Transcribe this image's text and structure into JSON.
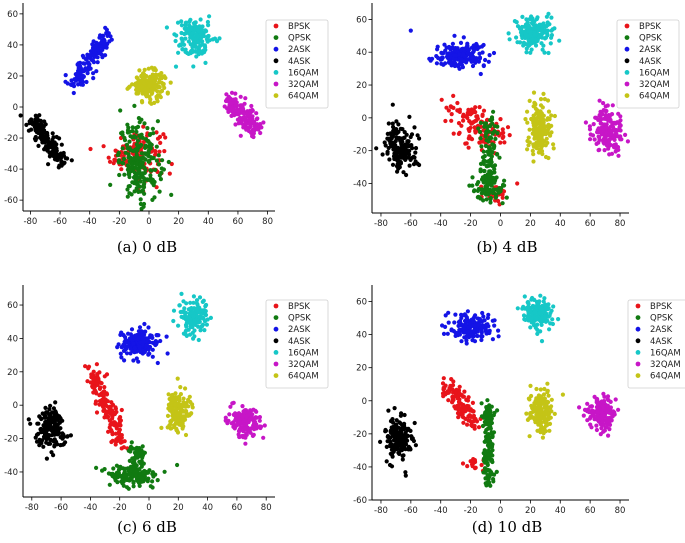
{
  "figure": {
    "legend_colors": {
      "BPSK": "#e8141a",
      "QPSK": "#117a11",
      "2ASK": "#1414e6",
      "4ASK": "#000000",
      "16QAM": "#16c7c7",
      "32QAM": "#c716c7",
      "64QAM": "#c4c417"
    }
  },
  "chart_data": [
    {
      "type": "scatter",
      "caption": "(a) 0 dB",
      "xlim": [
        -85,
        85
      ],
      "ylim": [
        -67,
        67
      ],
      "xticks": [
        "-80",
        "-60",
        "-40",
        "-20",
        "0",
        "20",
        "40",
        "60",
        "80"
      ],
      "yticks": [
        "-60",
        "-40",
        "-20",
        "0",
        "20",
        "40",
        "60"
      ],
      "legend": [
        "BPSK",
        "QPSK",
        "2ASK",
        "4ASK",
        "16QAM",
        "32QAM",
        "64QAM"
      ],
      "series": [
        {
          "name": "BPSK",
          "color": "#e8141a",
          "clusters": [
            {
              "x": -8,
              "y": -30,
              "sx": 9,
              "sy": 8,
              "n": 130
            }
          ]
        },
        {
          "name": "QPSK",
          "color": "#117a11",
          "clusters": [
            {
              "x": -6,
              "y": -35,
              "sx": 7,
              "sy": 12,
              "n": 220
            }
          ]
        },
        {
          "name": "2ASK",
          "color": "#1414e6",
          "clusters": [
            {
              "x": -38,
              "y": 29,
              "sx": 3,
              "sy": 3,
              "n": 150,
              "line": [
                -50,
                14,
                -28,
                47
              ]
            }
          ]
        },
        {
          "name": "4ASK",
          "color": "#000000",
          "clusters": [
            {
              "x": -68,
              "y": -21,
              "sx": 3,
              "sy": 3,
              "n": 160,
              "line": [
                -78,
                -8,
                -58,
                -36
              ]
            }
          ]
        },
        {
          "name": "16QAM",
          "color": "#16c7c7",
          "clusters": [
            {
              "x": 30,
              "y": 45,
              "sx": 6,
              "sy": 6,
              "n": 160
            }
          ]
        },
        {
          "name": "32QAM",
          "color": "#c716c7",
          "clusters": [
            {
              "x": 64,
              "y": -5,
              "sx": 4,
              "sy": 3,
              "n": 150,
              "line": [
                56,
                4,
                72,
                -16
              ]
            }
          ]
        },
        {
          "name": "64QAM",
          "color": "#c4c417",
          "clusters": [
            {
              "x": 0,
              "y": 14,
              "sx": 6,
              "sy": 5,
              "n": 160
            }
          ]
        }
      ]
    },
    {
      "type": "scatter",
      "caption": "(b) 4 dB",
      "xlim": [
        -86,
        86
      ],
      "ylim": [
        -58,
        70
      ],
      "xticks": [
        "-80",
        "-60",
        "-40",
        "-20",
        "0",
        "20",
        "40",
        "60",
        "80"
      ],
      "yticks": [
        "-40",
        "-20",
        "0",
        "20",
        "40",
        "60"
      ],
      "legend": [
        "BPSK",
        "QPSK",
        "2ASK",
        "4ASK",
        "16QAM",
        "32QAM",
        "64QAM"
      ],
      "series": [
        {
          "name": "BPSK",
          "color": "#e8141a",
          "clusters": [
            {
              "x": -18,
              "y": -8,
              "sx": 6,
              "sy": 5,
              "n": 120,
              "line": [
                -28,
                6,
                -5,
                -14
              ]
            },
            {
              "x": -4,
              "y": -45,
              "sx": 5,
              "sy": 3,
              "n": 25
            }
          ]
        },
        {
          "name": "QPSK",
          "color": "#117a11",
          "clusters": [
            {
              "x": -8,
              "y": -22,
              "sx": 3,
              "sy": 3,
              "n": 130,
              "line": [
                -8,
                -2,
                -8,
                -50
              ]
            },
            {
              "x": -8,
              "y": -42,
              "sx": 6,
              "sy": 4,
              "n": 60
            }
          ]
        },
        {
          "name": "2ASK",
          "color": "#1414e6",
          "clusters": [
            {
              "x": -27,
              "y": 38,
              "sx": 9,
              "sy": 4,
              "n": 170
            }
          ]
        },
        {
          "name": "4ASK",
          "color": "#000000",
          "clusters": [
            {
              "x": -67,
              "y": -18,
              "sx": 5,
              "sy": 7,
              "n": 150
            }
          ]
        },
        {
          "name": "16QAM",
          "color": "#16c7c7",
          "clusters": [
            {
              "x": 23,
              "y": 52,
              "sx": 6,
              "sy": 5,
              "n": 160
            }
          ]
        },
        {
          "name": "32QAM",
          "color": "#c716c7",
          "clusters": [
            {
              "x": 72,
              "y": -7,
              "sx": 5,
              "sy": 7,
              "n": 160
            }
          ]
        },
        {
          "name": "64QAM",
          "color": "#c4c417",
          "clusters": [
            {
              "x": 26,
              "y": -7,
              "sx": 4,
              "sy": 8,
              "n": 160
            }
          ]
        }
      ]
    },
    {
      "type": "scatter",
      "caption": "(c) 6 dB",
      "xlim": [
        -86,
        86
      ],
      "ylim": [
        -55,
        72
      ],
      "xticks": [
        "-80",
        "-60",
        "-40",
        "-20",
        "0",
        "20",
        "40",
        "60",
        "80"
      ],
      "yticks": [
        "-40",
        "-20",
        "0",
        "20",
        "40",
        "60"
      ],
      "legend": [
        "BPSK",
        "QPSK",
        "2ASK",
        "4ASK",
        "16QAM",
        "32QAM",
        "64QAM"
      ],
      "series": [
        {
          "name": "BPSK",
          "color": "#e8141a",
          "clusters": [
            {
              "x": -28,
              "y": 0,
              "sx": 3,
              "sy": 3,
              "n": 150,
              "line": [
                -40,
                22,
                -18,
                -24
              ]
            }
          ]
        },
        {
          "name": "QPSK",
          "color": "#117a11",
          "clusters": [
            {
              "x": -8,
              "y": -30,
              "sx": 3,
              "sy": 4,
              "n": 50
            },
            {
              "x": -12,
              "y": -42,
              "sx": 9,
              "sy": 3,
              "n": 130
            }
          ]
        },
        {
          "name": "2ASK",
          "color": "#1414e6",
          "clusters": [
            {
              "x": -7,
              "y": 37,
              "sx": 6,
              "sy": 4,
              "n": 170
            }
          ]
        },
        {
          "name": "4ASK",
          "color": "#000000",
          "clusters": [
            {
              "x": -67,
              "y": -15,
              "sx": 5,
              "sy": 6,
              "n": 170
            }
          ]
        },
        {
          "name": "16QAM",
          "color": "#16c7c7",
          "clusters": [
            {
              "x": 30,
              "y": 53,
              "sx": 5,
              "sy": 5,
              "n": 150
            }
          ]
        },
        {
          "name": "32QAM",
          "color": "#c716c7",
          "clusters": [
            {
              "x": 65,
              "y": -10,
              "sx": 5,
              "sy": 5,
              "n": 160
            }
          ]
        },
        {
          "name": "64QAM",
          "color": "#c4c417",
          "clusters": [
            {
              "x": 20,
              "y": -4,
              "sx": 4,
              "sy": 6,
              "n": 160
            }
          ]
        }
      ]
    },
    {
      "type": "scatter",
      "caption": "(d) 10 dB",
      "xlim": [
        -86,
        86
      ],
      "ylim": [
        -60,
        70
      ],
      "xticks": [
        "-80",
        "-60",
        "-40",
        "-20",
        "0",
        "20",
        "40",
        "60",
        "80"
      ],
      "yticks": [
        "-60",
        "-40",
        "-20",
        "0",
        "20",
        "40",
        "60"
      ],
      "legend": [
        "BPSK",
        "QPSK",
        "2ASK",
        "4ASK",
        "16QAM",
        "32QAM",
        "64QAM"
      ],
      "series": [
        {
          "name": "BPSK",
          "color": "#e8141a",
          "clusters": [
            {
              "x": -25,
              "y": -2,
              "sx": 3,
              "sy": 3,
              "n": 120,
              "line": [
                -35,
                10,
                -18,
                -14
              ]
            },
            {
              "x": -18,
              "y": -38,
              "sx": 3,
              "sy": 2,
              "n": 20
            }
          ]
        },
        {
          "name": "QPSK",
          "color": "#117a11",
          "clusters": [
            {
              "x": -8,
              "y": -24,
              "sx": 2,
              "sy": 3,
              "n": 150,
              "line": [
                -8,
                -2,
                -8,
                -50
              ]
            }
          ]
        },
        {
          "name": "2ASK",
          "color": "#1414e6",
          "clusters": [
            {
              "x": -20,
              "y": 44,
              "sx": 8,
              "sy": 4,
              "n": 170
            }
          ]
        },
        {
          "name": "4ASK",
          "color": "#000000",
          "clusters": [
            {
              "x": -68,
              "y": -23,
              "sx": 4,
              "sy": 7,
              "n": 170
            }
          ]
        },
        {
          "name": "16QAM",
          "color": "#16c7c7",
          "clusters": [
            {
              "x": 25,
              "y": 52,
              "sx": 5,
              "sy": 5,
              "n": 150
            }
          ]
        },
        {
          "name": "32QAM",
          "color": "#c716c7",
          "clusters": [
            {
              "x": 68,
              "y": -7,
              "sx": 5,
              "sy": 5,
              "n": 160
            }
          ]
        },
        {
          "name": "64QAM",
          "color": "#c4c417",
          "clusters": [
            {
              "x": 27,
              "y": -7,
              "sx": 4,
              "sy": 7,
              "n": 160
            }
          ]
        }
      ]
    }
  ]
}
